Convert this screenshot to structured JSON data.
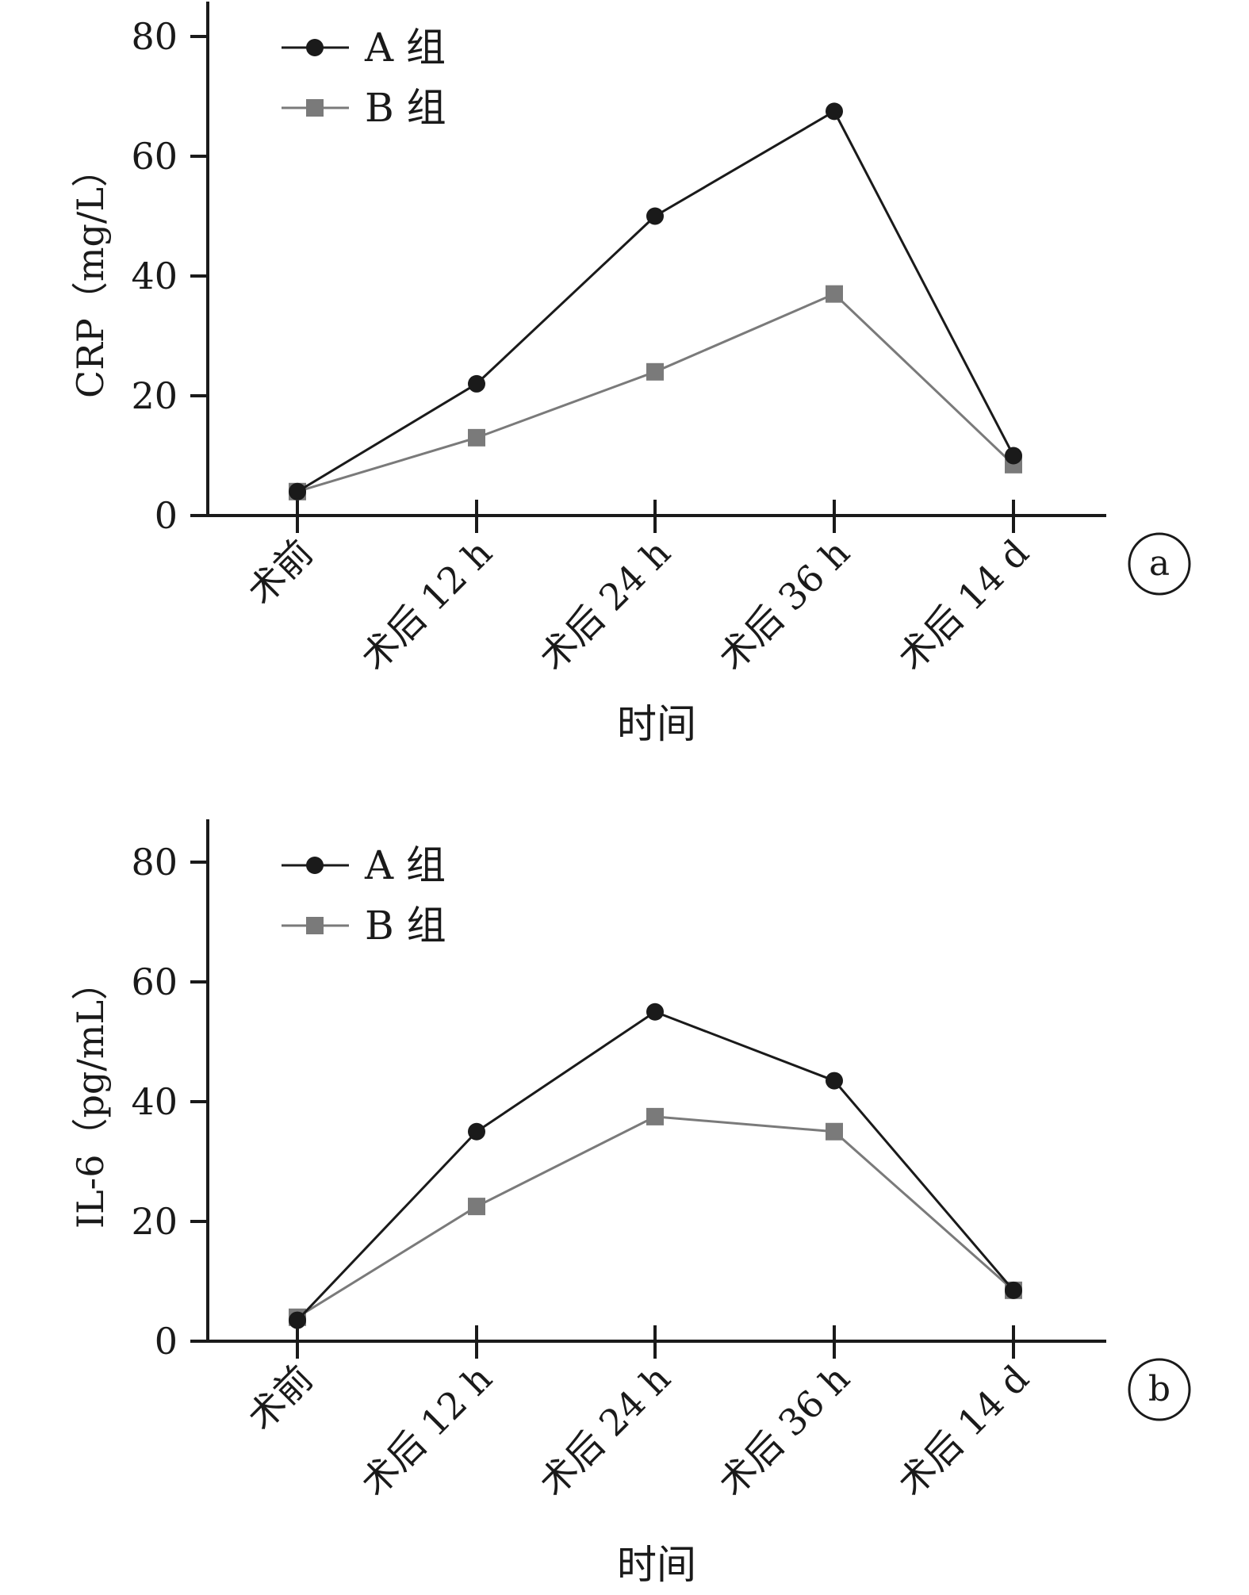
{
  "chart_data": [
    {
      "type": "line",
      "panel_label": "a",
      "ylabel": "CRP（mg/L）",
      "xlabel": "时间",
      "categories": [
        "术前",
        "术后 12 h",
        "术后 24 h",
        "术后 36 h",
        "术后 14 d"
      ],
      "ylim": [
        0,
        85
      ],
      "yticks": [
        0,
        20,
        40,
        60,
        80
      ],
      "grid": false,
      "legend_position": "top-left",
      "series": [
        {
          "name": "A 组",
          "marker": "circle",
          "color": "#1a1a1a",
          "values": [
            4,
            22,
            50,
            67.5,
            10
          ]
        },
        {
          "name": "B 组",
          "marker": "square",
          "color": "#7a7a7a",
          "values": [
            4,
            13,
            24,
            37,
            8.5
          ]
        }
      ]
    },
    {
      "type": "line",
      "panel_label": "b",
      "ylabel": "IL-6（pg/mL）",
      "xlabel": "时间",
      "categories": [
        "术前",
        "术后 12 h",
        "术后 24 h",
        "术后 36 h",
        "术后 14 d"
      ],
      "ylim": [
        0,
        85
      ],
      "yticks": [
        0,
        20,
        40,
        60,
        80
      ],
      "grid": false,
      "legend_position": "top-left",
      "series": [
        {
          "name": "A 组",
          "marker": "circle",
          "color": "#1a1a1a",
          "values": [
            3.5,
            35,
            55,
            43.5,
            8.5
          ]
        },
        {
          "name": "B 组",
          "marker": "square",
          "color": "#7a7a7a",
          "values": [
            4,
            22.5,
            37.5,
            35,
            8.5
          ]
        }
      ]
    }
  ]
}
